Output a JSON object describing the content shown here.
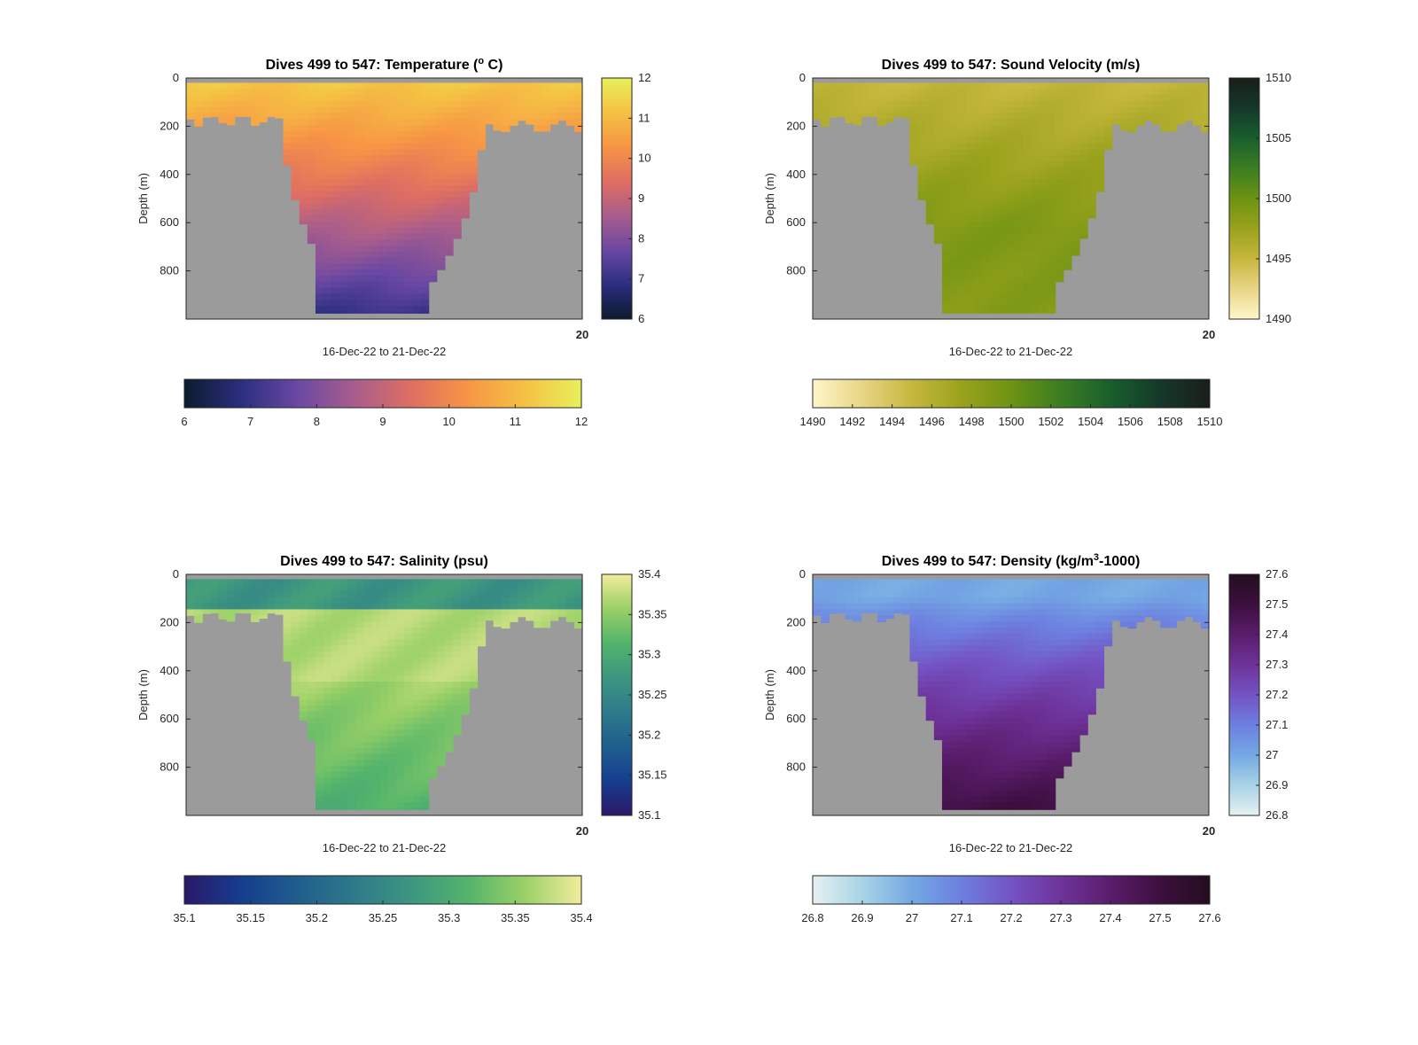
{
  "figure": {
    "panels": [
      {
        "id": "temperature",
        "title_prefix": "Dives 499 to 547: Temperature (",
        "title_sup": "o",
        "title_suffix": " C)",
        "ylabel": "Depth (m)",
        "xlabel": "16-Dec-22 to 21-Dec-22",
        "x_end_tick": "20",
        "colormap": "thermal",
        "colors": [
          "#0c1b2e",
          "#2b2e7e",
          "#6a48a3",
          "#a85d8c",
          "#df6e62",
          "#f79545",
          "#f5c143",
          "#e8f05c"
        ]
      },
      {
        "id": "sound_velocity",
        "title_prefix": "Dives 499 to 547: Sound Velocity (m/s)",
        "title_sup": "",
        "title_suffix": "",
        "ylabel": "Depth (m)",
        "xlabel": "16-Dec-22 to 21-Dec-22",
        "x_end_tick": "20",
        "colormap": "speed",
        "colors": [
          "#fdf6c9",
          "#e8d585",
          "#c6b73d",
          "#9aa21c",
          "#6d9313",
          "#3c7d22",
          "#195f2c",
          "#15382a",
          "#191e18"
        ]
      },
      {
        "id": "salinity",
        "title_prefix": "Dives 499 to 547: Salinity (psu)",
        "title_sup": "",
        "title_suffix": "",
        "ylabel": "Depth (m)",
        "xlabel": "16-Dec-22 to 21-Dec-22",
        "x_end_tick": "20",
        "colormap": "haline",
        "colors": [
          "#2a1868",
          "#163d8f",
          "#1f5e8d",
          "#2e7a8a",
          "#3d9680",
          "#53b46b",
          "#9ad066",
          "#f1ec9c"
        ]
      },
      {
        "id": "density",
        "title_prefix": "Dives 499 to 547: Density (kg/m",
        "title_sup": "3",
        "title_suffix": "-1000)",
        "ylabel": "Depth (m)",
        "xlabel": "16-Dec-22 to 21-Dec-22",
        "x_end_tick": "20",
        "colormap": "dense",
        "colors": [
          "#e6f1f1",
          "#a8d3e6",
          "#74a8e3",
          "#6d7fe0",
          "#7453c4",
          "#6e339a",
          "#5a1d6c",
          "#3c0f3e",
          "#230d1f"
        ]
      }
    ]
  },
  "chart_data": [
    {
      "type": "heatmap",
      "title": "Dives 499 to 547: Temperature (° C)",
      "xlabel": "16-Dec-22 to 21-Dec-22",
      "ylabel": "Depth (m)",
      "ylim": [
        0,
        1000
      ],
      "y_ticks": [
        0,
        200,
        400,
        600,
        800
      ],
      "x_ticks": [
        "20"
      ],
      "colorbar_range": [
        6,
        12
      ],
      "colorbar_vertical_ticks": [
        12,
        11,
        10,
        9,
        8,
        7,
        6
      ],
      "colorbar_horizontal_ticks": [
        6,
        7,
        8,
        9,
        10,
        11,
        12
      ],
      "surface_value": 11.3,
      "deep_value": 7.2
    },
    {
      "type": "heatmap",
      "title": "Dives 499 to 547: Sound Velocity (m/s)",
      "xlabel": "16-Dec-22 to 21-Dec-22",
      "ylabel": "Depth (m)",
      "ylim": [
        0,
        1000
      ],
      "y_ticks": [
        0,
        200,
        400,
        600,
        800
      ],
      "x_ticks": [
        "20"
      ],
      "colorbar_range": [
        1490,
        1510
      ],
      "colorbar_vertical_ticks": [
        1510,
        1505,
        1500,
        1495,
        1490
      ],
      "colorbar_horizontal_ticks": [
        1490,
        1492,
        1494,
        1496,
        1498,
        1500,
        1502,
        1504,
        1506,
        1508,
        1510
      ],
      "surface_value": 1495.5,
      "deep_value": 1497.5
    },
    {
      "type": "heatmap",
      "title": "Dives 499 to 547: Salinity (psu)",
      "xlabel": "16-Dec-22 to 21-Dec-22",
      "ylabel": "Depth (m)",
      "ylim": [
        0,
        1000
      ],
      "y_ticks": [
        0,
        200,
        400,
        600,
        800
      ],
      "x_ticks": [
        "20"
      ],
      "colorbar_range": [
        35.1,
        35.4
      ],
      "colorbar_vertical_ticks": [
        35.4,
        35.35,
        35.3,
        35.25,
        35.2,
        35.15,
        35.1
      ],
      "colorbar_horizontal_ticks": [
        35.1,
        35.15,
        35.2,
        35.25,
        35.3,
        35.35,
        35.4
      ],
      "surface_value": 35.3,
      "deep_value": 35.27
    },
    {
      "type": "heatmap",
      "title": "Dives 499 to 547: Density (kg/m3-1000)",
      "xlabel": "16-Dec-22 to 21-Dec-22",
      "ylabel": "Depth (m)",
      "ylim": [
        0,
        1000
      ],
      "y_ticks": [
        0,
        200,
        400,
        600,
        800
      ],
      "x_ticks": [
        "20"
      ],
      "colorbar_range": [
        26.8,
        27.6
      ],
      "colorbar_vertical_ticks": [
        27.6,
        27.5,
        27.4,
        27.3,
        27.2,
        27.1,
        27,
        26.9,
        26.8
      ],
      "colorbar_horizontal_ticks": [
        26.8,
        26.9,
        27,
        27.1,
        27.2,
        27.3,
        27.4,
        27.5,
        27.6
      ],
      "surface_value": 27.0,
      "deep_value": 27.5
    }
  ]
}
